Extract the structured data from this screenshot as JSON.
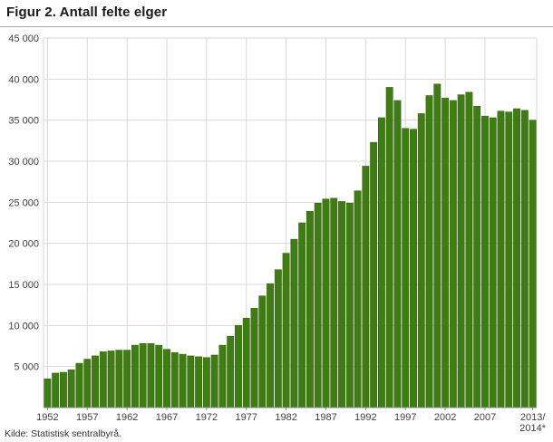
{
  "header": {
    "title": "Figur 2. Antall felte elger"
  },
  "source": "Kilde: Statistisk sentralbyrå.",
  "chart_data": {
    "type": "bar",
    "title": "Figur 2. Antall felte elger",
    "xlabel": "",
    "ylabel": "",
    "ylim": [
      0,
      45000
    ],
    "ytick_interval": 5000,
    "ytick_labels": [
      "5 000",
      "10 000",
      "15 000",
      "20 000",
      "25 000",
      "30 000",
      "35 000",
      "40 000",
      "45 000"
    ],
    "xticks": [
      1952,
      1957,
      1962,
      1967,
      1972,
      1977,
      1982,
      1987,
      1992,
      1997,
      2002,
      2007
    ],
    "last_xtick_label": [
      "2013/",
      "2014*"
    ],
    "grid": true,
    "legend": "none",
    "years": [
      1952,
      1953,
      1954,
      1955,
      1956,
      1957,
      1958,
      1959,
      1960,
      1961,
      1962,
      1963,
      1964,
      1965,
      1966,
      1967,
      1968,
      1969,
      1970,
      1971,
      1972,
      1973,
      1974,
      1975,
      1976,
      1977,
      1978,
      1979,
      1980,
      1981,
      1982,
      1983,
      1984,
      1985,
      1986,
      1987,
      1988,
      1989,
      1990,
      1991,
      1992,
      1993,
      1994,
      1995,
      1996,
      1997,
      1998,
      1999,
      2000,
      2001,
      2002,
      2003,
      2004,
      2005,
      2006,
      2007,
      2008,
      2009,
      2010,
      2011,
      2012,
      2013
    ],
    "values": [
      3500,
      4200,
      4300,
      4600,
      5400,
      5900,
      6300,
      6800,
      6900,
      7000,
      7000,
      7600,
      7800,
      7800,
      7600,
      7100,
      6700,
      6500,
      6300,
      6200,
      6100,
      6400,
      7600,
      8700,
      10000,
      10900,
      12100,
      13600,
      15100,
      16800,
      18800,
      20500,
      22500,
      23900,
      24900,
      25400,
      25500,
      25100,
      24900,
      26400,
      29400,
      32300,
      35300,
      39000,
      37400,
      34000,
      33900,
      35800,
      38000,
      39400,
      37700,
      37400,
      38100,
      38400,
      36700,
      35500,
      35300,
      36100,
      36000,
      36400,
      36200,
      35000
    ],
    "bar_color": "#3f7c14",
    "bar_edge_color": "#336309",
    "grid_color": "#d8d8d8",
    "axis_color": "#8c8c8c"
  }
}
